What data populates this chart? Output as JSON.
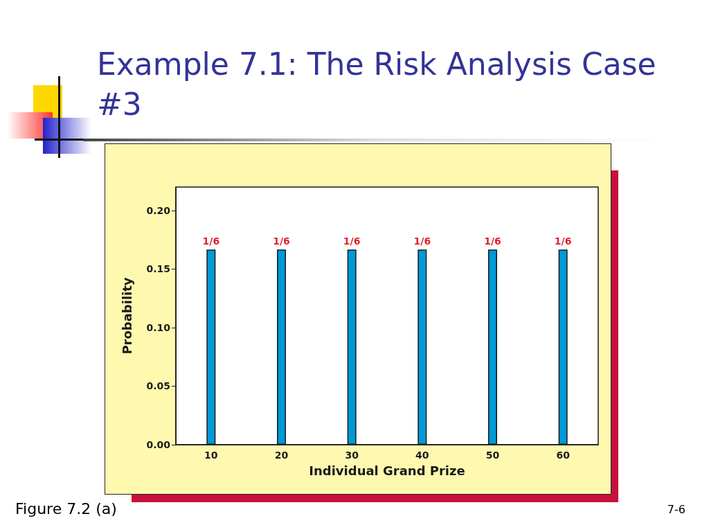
{
  "chart_data": {
    "type": "bar",
    "title": "Example 7.1: The Risk Analysis Case #3",
    "xlabel": "Individual Grand Prize",
    "ylabel": "Probability",
    "categories": [
      "10",
      "20",
      "30",
      "40",
      "50",
      "60"
    ],
    "values": [
      0.1667,
      0.1667,
      0.1667,
      0.1667,
      0.1667,
      0.1667
    ],
    "value_labels": [
      "1/6",
      "1/6",
      "1/6",
      "1/6",
      "1/6",
      "1/6"
    ],
    "color": "#0099d8",
    "ylim": [
      0,
      0.22
    ],
    "yticks": [
      {
        "value": 0,
        "label": "0.00"
      },
      {
        "value": 0.05,
        "label": "0.05"
      },
      {
        "value": 0.1,
        "label": "0.10"
      },
      {
        "value": 0.15,
        "label": "0.15"
      },
      {
        "value": 0.2,
        "label": "0.20"
      }
    ],
    "grid": false,
    "annotations": [
      "Figure 7.2 (a)",
      "7-6"
    ]
  }
}
